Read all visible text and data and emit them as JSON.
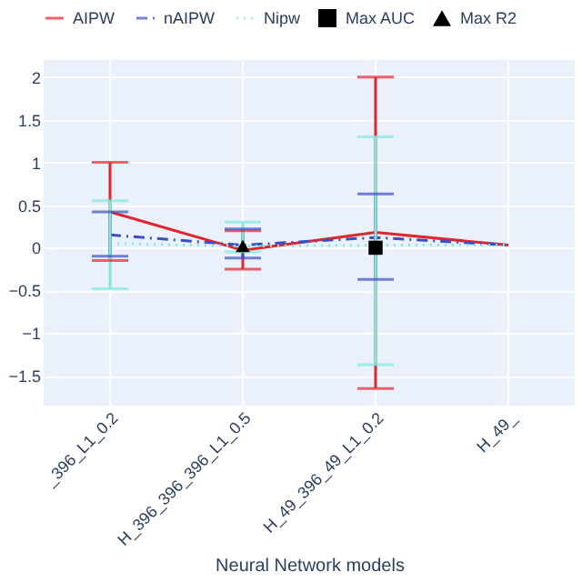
{
  "chart_data": {
    "type": "line",
    "xlabel": "Neural Network models",
    "categories": [
      "_396_L1_0.2",
      "H_396_396_396_L1_0.5",
      "H_49_396_49_L1_0.2",
      "H_49_"
    ],
    "series": [
      {
        "name": "AIPW",
        "color": "#e3242b",
        "line_style": "solid",
        "values": [
          0.42,
          -0.03,
          0.18,
          0.03
        ],
        "errors": [
          [
            -0.15,
            1.0
          ],
          [
            -0.25,
            0.2
          ],
          [
            -1.65,
            2.0
          ],
          null
        ]
      },
      {
        "name": "nAIPW",
        "color": "#3a4fc4",
        "line_style": "dashdot",
        "values": [
          0.15,
          0.03,
          0.12,
          0.03
        ],
        "errors": [
          [
            -0.1,
            0.42
          ],
          [
            -0.12,
            0.22
          ],
          [
            -0.37,
            0.63
          ],
          null
        ]
      },
      {
        "name": "Nipw",
        "color": "#7eeade",
        "line_style": "dotted",
        "values": [
          0.05,
          0.02,
          0.03,
          0.03
        ],
        "errors": [
          [
            -0.48,
            0.55
          ],
          [
            -0.05,
            0.3
          ],
          [
            -1.37,
            1.3
          ],
          null
        ]
      },
      {
        "name": "Max AUC",
        "type": "scatter",
        "marker": "square",
        "color": "#000000",
        "values": [
          null,
          null,
          0,
          null
        ]
      },
      {
        "name": "Max R2",
        "type": "scatter",
        "marker": "triangle",
        "color": "#000000",
        "values": [
          null,
          0.02,
          null,
          null
        ]
      }
    ],
    "ylim": [
      -1.85,
      2.2
    ],
    "yticks": [
      -1.5,
      -1,
      -0.5,
      0,
      0.5,
      1,
      1.5,
      2
    ],
    "grid": true,
    "legend": "top"
  }
}
